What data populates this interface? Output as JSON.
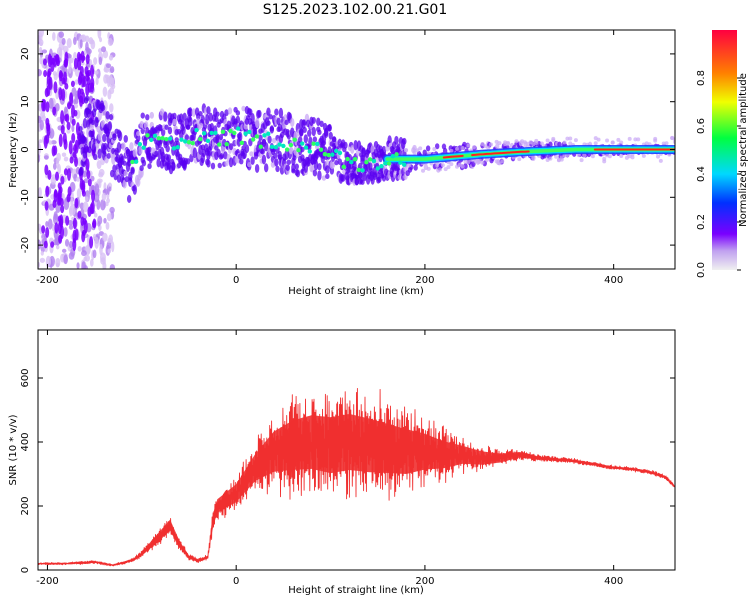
{
  "title": "S125.2023.102.00.21.G01",
  "chart_data": [
    {
      "type": "heatmap",
      "xlabel": "Height of straight line (km)",
      "ylabel": "Frequency (Hz)",
      "xlim": [
        -210,
        465
      ],
      "ylim": [
        -25,
        25
      ],
      "xticks": [
        -200,
        0,
        200,
        400
      ],
      "yticks": [
        -20,
        -10,
        0,
        10,
        20
      ],
      "colorbar": {
        "label": "Normalized spectral amplitude",
        "range": [
          0,
          1
        ],
        "ticks": [
          "0.0",
          "0.2",
          "0.4",
          "0.6",
          "0.8"
        ],
        "colormap": [
          "#e8d8f8",
          "#7a00ff",
          "#0030ff",
          "#00d8ff",
          "#00ff40",
          "#f0ff00",
          "#ff8000",
          "#ff0000"
        ]
      },
      "ridge": [
        {
          "x": -160,
          "y": 6
        },
        {
          "x": -140,
          "y": 3
        },
        {
          "x": -125,
          "y": -1
        },
        {
          "x": -112,
          "y": -5
        },
        {
          "x": -100,
          "y": 1
        },
        {
          "x": -85,
          "y": 3
        },
        {
          "x": -60,
          "y": 1
        },
        {
          "x": -40,
          "y": 3
        },
        {
          "x": -20,
          "y": 2
        },
        {
          "x": 0,
          "y": 3
        },
        {
          "x": 20,
          "y": 2
        },
        {
          "x": 40,
          "y": 2
        },
        {
          "x": 60,
          "y": 1
        },
        {
          "x": 80,
          "y": 1
        },
        {
          "x": 100,
          "y": -1
        },
        {
          "x": 120,
          "y": -3
        },
        {
          "x": 140,
          "y": -3
        },
        {
          "x": 160,
          "y": -2
        },
        {
          "x": 180,
          "y": -2
        },
        {
          "x": 200,
          "y": -2
        },
        {
          "x": 230,
          "y": -1.5
        },
        {
          "x": 260,
          "y": -1
        },
        {
          "x": 300,
          "y": -0.5
        },
        {
          "x": 360,
          "y": 0
        },
        {
          "x": 420,
          "y": 0
        },
        {
          "x": 465,
          "y": 0
        }
      ]
    },
    {
      "type": "line",
      "xlabel": "Height of straight line (km)",
      "ylabel": "SNR (10 * v/v)",
      "xlim": [
        -210,
        465
      ],
      "ylim": [
        0,
        750
      ],
      "xticks": [
        -200,
        0,
        200,
        400
      ],
      "yticks": [
        0,
        200,
        400,
        600
      ],
      "color": "#f03030",
      "series": [
        {
          "x": [
            -210,
            -180,
            -150,
            -130,
            -110,
            -100,
            -90,
            -80,
            -70,
            -60,
            -50,
            -40,
            -30,
            -25,
            -20,
            0,
            20,
            40,
            60,
            80,
            100,
            120,
            140,
            160,
            180,
            200,
            220,
            240,
            260,
            280,
            300,
            320,
            340,
            360,
            380,
            400,
            420,
            440,
            455,
            465
          ],
          "values": [
            20,
            20,
            25,
            15,
            30,
            50,
            80,
            110,
            140,
            80,
            40,
            30,
            40,
            150,
            200,
            240,
            320,
            370,
            390,
            400,
            390,
            400,
            390,
            380,
            370,
            370,
            360,
            360,
            350,
            350,
            360,
            350,
            345,
            340,
            330,
            320,
            315,
            305,
            290,
            260
          ],
          "spread": [
            5,
            5,
            8,
            5,
            8,
            15,
            30,
            40,
            50,
            30,
            15,
            10,
            10,
            60,
            60,
            80,
            120,
            180,
            220,
            240,
            250,
            250,
            240,
            220,
            200,
            160,
            120,
            80,
            60,
            40,
            25,
            15,
            12,
            10,
            10,
            10,
            10,
            10,
            10,
            10
          ]
        }
      ]
    }
  ]
}
